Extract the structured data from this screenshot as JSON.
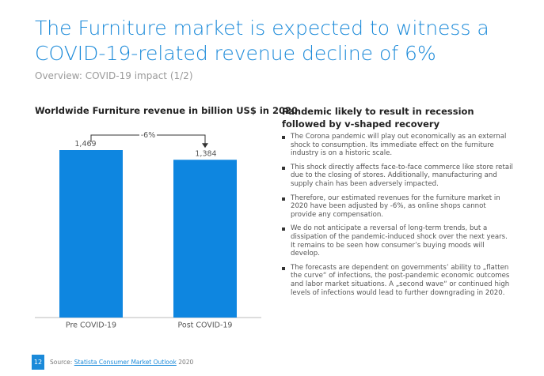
{
  "title": "The Furniture market is expected to witness a COVID-19-related revenue decline of 6%",
  "subtitle": "Overview: COVID-19 impact (1/2)",
  "chart_data": {
    "type": "bar",
    "title": "Worldwide Furniture revenue in billion US$ in 2020",
    "categories": [
      "Pre COVID-19",
      "Post COVID-19"
    ],
    "values": [
      1469,
      1384
    ],
    "value_labels": [
      "1,469",
      "1,384"
    ],
    "color": "#0e86e0",
    "annotation": "-6%"
  },
  "panel": {
    "heading": "Pandemic likely to result in recession followed by v-shaped recovery",
    "bullets": [
      "The Corona pandemic will play out economically as an external shock to consumption. Its immediate effect on the furniture industry is on a historic scale.",
      "This shock directly affects face-to-face commerce like store retail due to the closing of stores. Additionally, manufacturing and supply chain has been adversely impacted.",
      "Therefore, our estimated revenues for the furniture market in 2020 have been adjusted by -6%, as online shops cannot provide any compensation.",
      "We do not anticipate a reversal of long-term trends, but a dissipation of the pandemic-induced shock over the next years. It remains to be seen how consumer’s buying moods will develop.",
      "The forecasts are dependent on governments’ ability to „flatten the curve“ of infections, the post-pandemic economic outcomes and labor market situations. A „second wave“ or continued high levels of infections would lead to further downgrading in 2020."
    ]
  },
  "footer": {
    "page": "12",
    "source_prefix": "Source:",
    "source_link": "Statista Consumer Market Outlook",
    "source_year": "2020"
  }
}
